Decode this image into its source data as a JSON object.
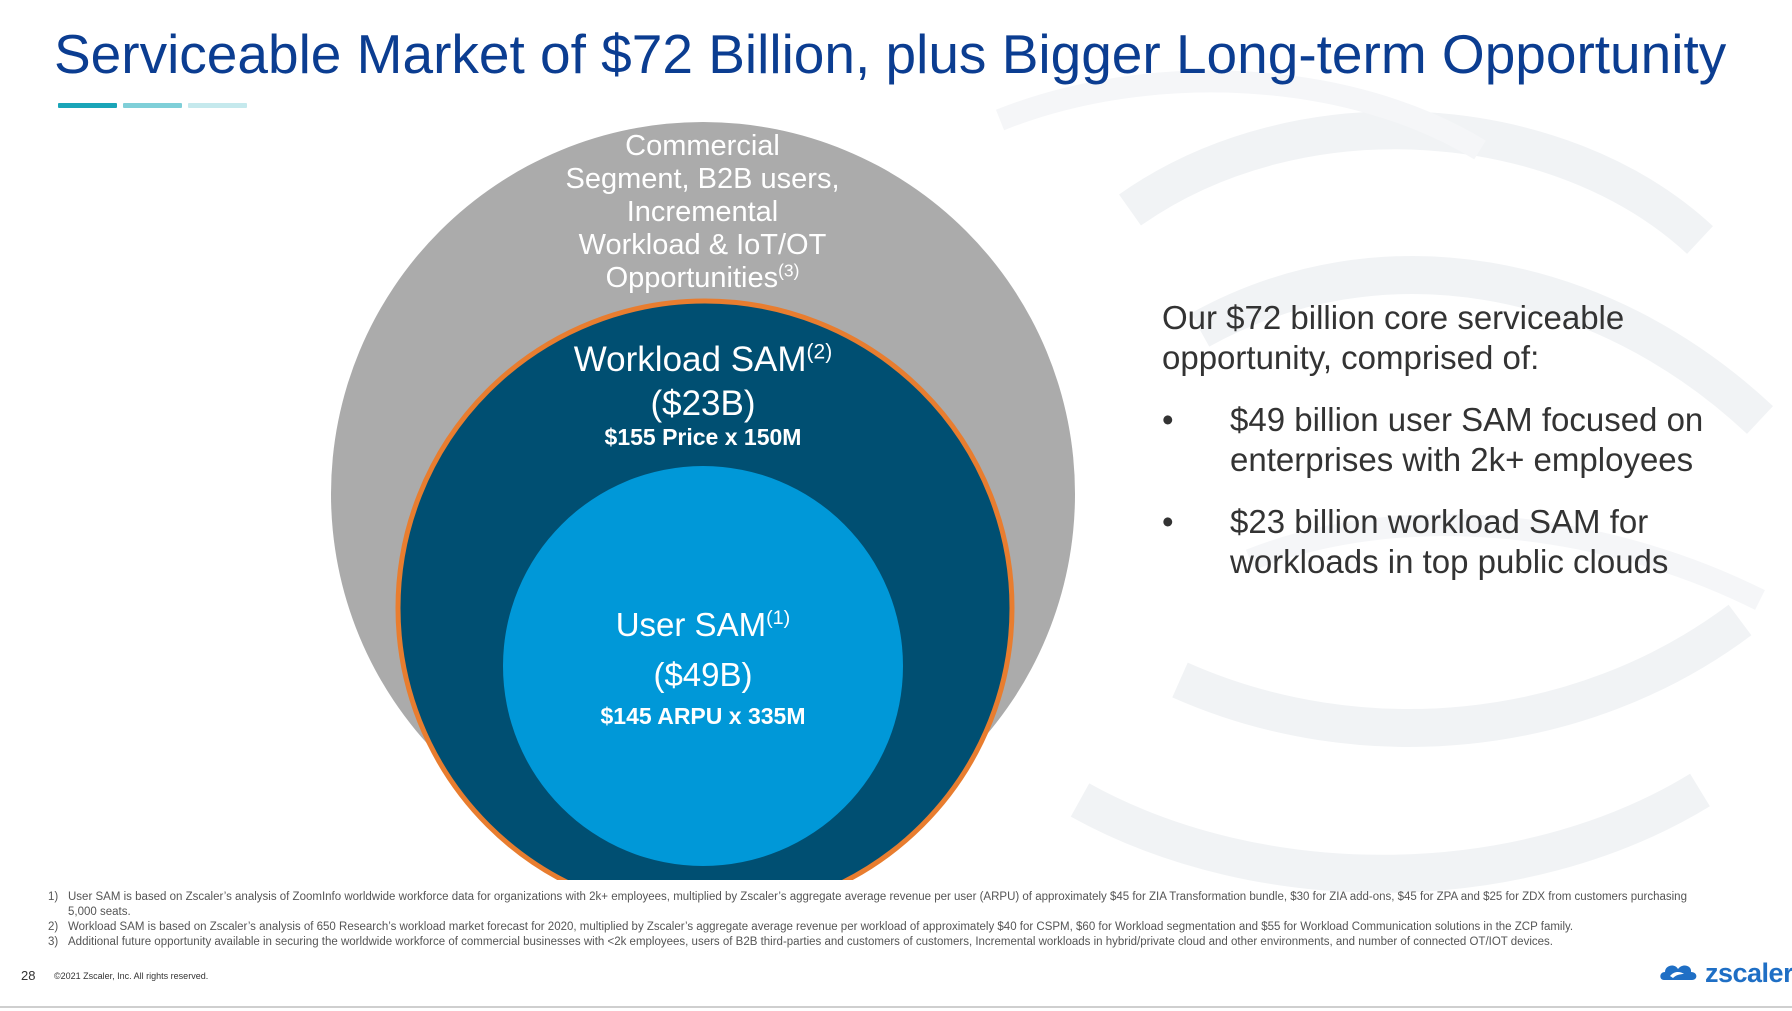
{
  "slide": {
    "title": "Serviceable Market of $72 Billion, plus Bigger Long-term Opportunity",
    "title_color": "#0b3d91",
    "title_bar_colors": [
      "#1aa5b8",
      "#7fcfd8",
      "#c5e9ed"
    ]
  },
  "diagram": {
    "outer": {
      "color": "#ababab",
      "lines": [
        "Commercial",
        "Segment, B2B users,",
        "Incremental",
        "Workload & IoT/OT",
        "Opportunities"
      ],
      "footnote_ref": "(3)"
    },
    "middle": {
      "color": "#004f72",
      "border_color": "#e87d2f",
      "label": "Workload SAM",
      "footnote_ref": "(2)",
      "amount": "($23B)",
      "detail": "$155 Price x 150M"
    },
    "inner": {
      "color": "#0098d8",
      "label": "User SAM",
      "footnote_ref": "(1)",
      "amount": "($49B)",
      "detail": "$145 ARPU x 335M"
    }
  },
  "right_panel": {
    "intro": "Our $72 billion core serviceable opportunity, comprised of:",
    "bullet_symbol": "•",
    "bullets": [
      "$49 billion user SAM focused on enterprises with 2k+ employees",
      "$23 billion workload SAM for workloads in top public clouds"
    ]
  },
  "footnotes": [
    {
      "num": "1)",
      "text": "User SAM is based on Zscaler’s analysis of ZoomInfo worldwide workforce data for organizations with 2k+ employees, multiplied by Zscaler’s aggregate average revenue per user (ARPU) of approximately $45 for ZIA Transformation bundle, $30 for ZIA add-ons, $45 for ZPA and $25 for ZDX from customers purchasing 5,000 seats."
    },
    {
      "num": "2)",
      "text": "Workload SAM is based on Zscaler’s analysis of 650 Research’s workload market forecast for 2020, multiplied by Zscaler’s aggregate average revenue per workload of approximately $40 for CSPM, $60 for Workload segmentation and $55 for Workload Communication solutions in the ZCP family."
    },
    {
      "num": "3)",
      "text": "Additional future opportunity available in securing the worldwide workforce of commercial businesses with <2k employees, users of B2B third-parties and customers of customers, Incremental workloads in hybrid/private cloud and other environments, and number of connected OT/IOT devices."
    }
  ],
  "footer": {
    "page_number": "28",
    "copyright": "©2021 Zscaler, Inc. All rights reserved.",
    "logo_text": "zscaler",
    "logo_icon": "cloud-logo-icon",
    "logo_color": "#1f6fc5"
  }
}
